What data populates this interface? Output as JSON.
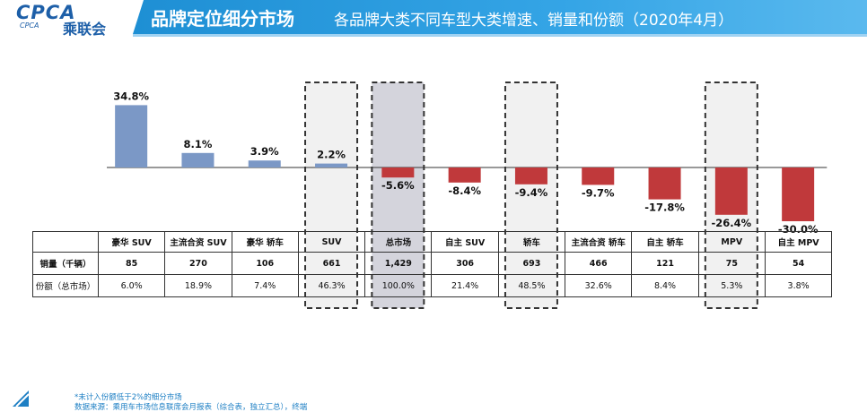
{
  "header": {
    "logo_text": "CPCA",
    "logo_cn": "乘联会",
    "logo_en": "CPCA",
    "title": "品牌定位细分市场",
    "subtitle": "各品牌大类不同车型大类增速、销量和份额（2020年4月）"
  },
  "chart_data": {
    "type": "bar",
    "title": "各品牌大类不同车型大类增速、销量和份额（2020年4月）",
    "categories": [
      "豪华 SUV",
      "主流合资 SUV",
      "豪华 轿车",
      "SUV",
      "总市场",
      "自主 SUV",
      "轿车",
      "主流合资 轿车",
      "自主 轿车",
      "MPV",
      "自主 MPV"
    ],
    "series": [
      {
        "name": "增速",
        "values": [
          34.8,
          8.1,
          3.9,
          2.2,
          -5.6,
          -8.4,
          -9.4,
          -9.7,
          -17.8,
          -26.4,
          -30.0
        ],
        "labels": [
          "34.8%",
          "8.1%",
          "3.9%",
          "2.2%",
          "-5.6%",
          "-8.4%",
          "-9.4%",
          "-9.7%",
          "-17.8%",
          "-26.4%",
          "-30.0%"
        ]
      }
    ],
    "ylim": [
      -30,
      35
    ],
    "highlighted": [
      "SUV",
      "总市场",
      "轿车",
      "MPV"
    ],
    "colors": {
      "positive": "#7b98c6",
      "negative": "#c0393b",
      "highlight_bg": "#f1f1f1",
      "total_bg": "#d4d4dc"
    }
  },
  "table": {
    "row_labels": [
      "销量（千辆）",
      "份额（总市场）"
    ],
    "sales": [
      "85",
      "270",
      "106",
      "661",
      "1,429",
      "306",
      "693",
      "466",
      "121",
      "75",
      "54"
    ],
    "share": [
      "6.0%",
      "18.9%",
      "7.4%",
      "46.3%",
      "100.0%",
      "21.4%",
      "48.5%",
      "32.6%",
      "8.4%",
      "5.3%",
      "3.8%"
    ]
  },
  "footer": {
    "note1": "*未计入份额低于2%的细分市场",
    "note2": "数据来源：乘用车市场信息联席会月报表（综合表，独立汇总），终端"
  }
}
